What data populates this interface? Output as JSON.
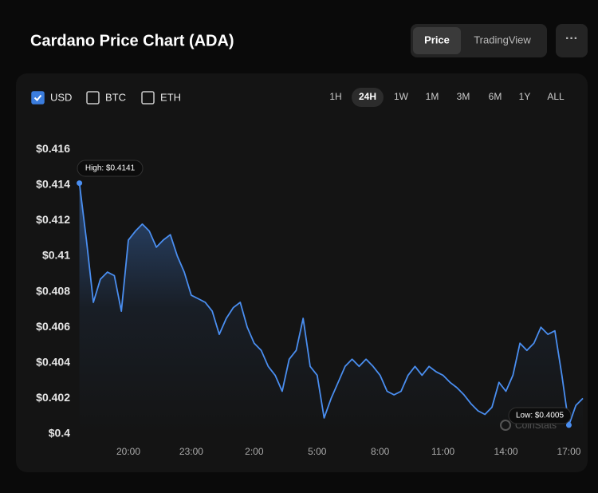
{
  "header": {
    "title": "Cardano Price Chart (ADA)",
    "tabs": [
      "Price",
      "TradingView"
    ],
    "active_tab": "Price",
    "menu": "···"
  },
  "currencies": {
    "options": [
      "USD",
      "BTC",
      "ETH"
    ],
    "checked": [
      "USD"
    ]
  },
  "ranges": {
    "options": [
      "1H",
      "24H",
      "1W",
      "1M",
      "3M",
      "6M",
      "1Y",
      "ALL"
    ],
    "active": "24H"
  },
  "chart_data": {
    "type": "line",
    "watermark": "CoinStats",
    "annotations": {
      "high": "High: $0.4141",
      "low": "Low: $0.4005"
    },
    "categories": [
      null,
      null,
      null,
      null,
      null,
      null,
      null,
      "20:00",
      null,
      null,
      null,
      null,
      null,
      null,
      null,
      null,
      "23:00",
      null,
      null,
      null,
      null,
      null,
      null,
      null,
      null,
      "2:00",
      null,
      null,
      null,
      null,
      null,
      null,
      null,
      null,
      "5:00",
      null,
      null,
      null,
      null,
      null,
      null,
      null,
      null,
      "8:00",
      null,
      null,
      null,
      null,
      null,
      null,
      null,
      null,
      "11:00",
      null,
      null,
      null,
      null,
      null,
      null,
      null,
      null,
      "14:00",
      null,
      null,
      null,
      null,
      null,
      null,
      null,
      null,
      "17:00",
      null,
      null
    ],
    "series": [
      {
        "name": "ADA",
        "color": "#4a8ef0",
        "values": [
          0.4141,
          0.4109,
          0.4074,
          0.4087,
          0.4091,
          0.4089,
          0.4069,
          0.4109,
          0.4114,
          0.4118,
          0.4114,
          0.4105,
          0.4109,
          0.4112,
          0.41,
          0.4091,
          0.4078,
          0.4076,
          0.4074,
          0.4069,
          0.4056,
          0.4065,
          0.4071,
          0.4074,
          0.406,
          0.4051,
          0.4047,
          0.4038,
          0.4033,
          0.4024,
          0.4042,
          0.4047,
          0.4065,
          0.4038,
          0.4033,
          0.4009,
          0.402,
          0.4029,
          0.4038,
          0.4042,
          0.4038,
          0.4042,
          0.4038,
          0.4033,
          0.4024,
          0.4022,
          0.4024,
          0.4033,
          0.4038,
          0.4033,
          0.4038,
          0.4035,
          0.4033,
          0.4029,
          0.4026,
          0.4022,
          0.4017,
          0.4013,
          0.4011,
          0.4015,
          0.4029,
          0.4024,
          0.4033,
          0.4051,
          0.4047,
          0.4051,
          0.406,
          0.4056,
          0.4058,
          0.4033,
          0.4005,
          0.4016,
          0.402
        ]
      }
    ],
    "ylim": [
      0.4,
      0.417
    ],
    "yticks": [
      {
        "value": 0.4,
        "label": "$0.4"
      },
      {
        "value": 0.402,
        "label": "$0.402"
      },
      {
        "value": 0.404,
        "label": "$0.404"
      },
      {
        "value": 0.406,
        "label": "$0.406"
      },
      {
        "value": 0.408,
        "label": "$0.408"
      },
      {
        "value": 0.41,
        "label": "$0.41"
      },
      {
        "value": 0.412,
        "label": "$0.412"
      },
      {
        "value": 0.414,
        "label": "$0.414"
      },
      {
        "value": 0.416,
        "label": "$0.416"
      }
    ],
    "grid": false
  }
}
